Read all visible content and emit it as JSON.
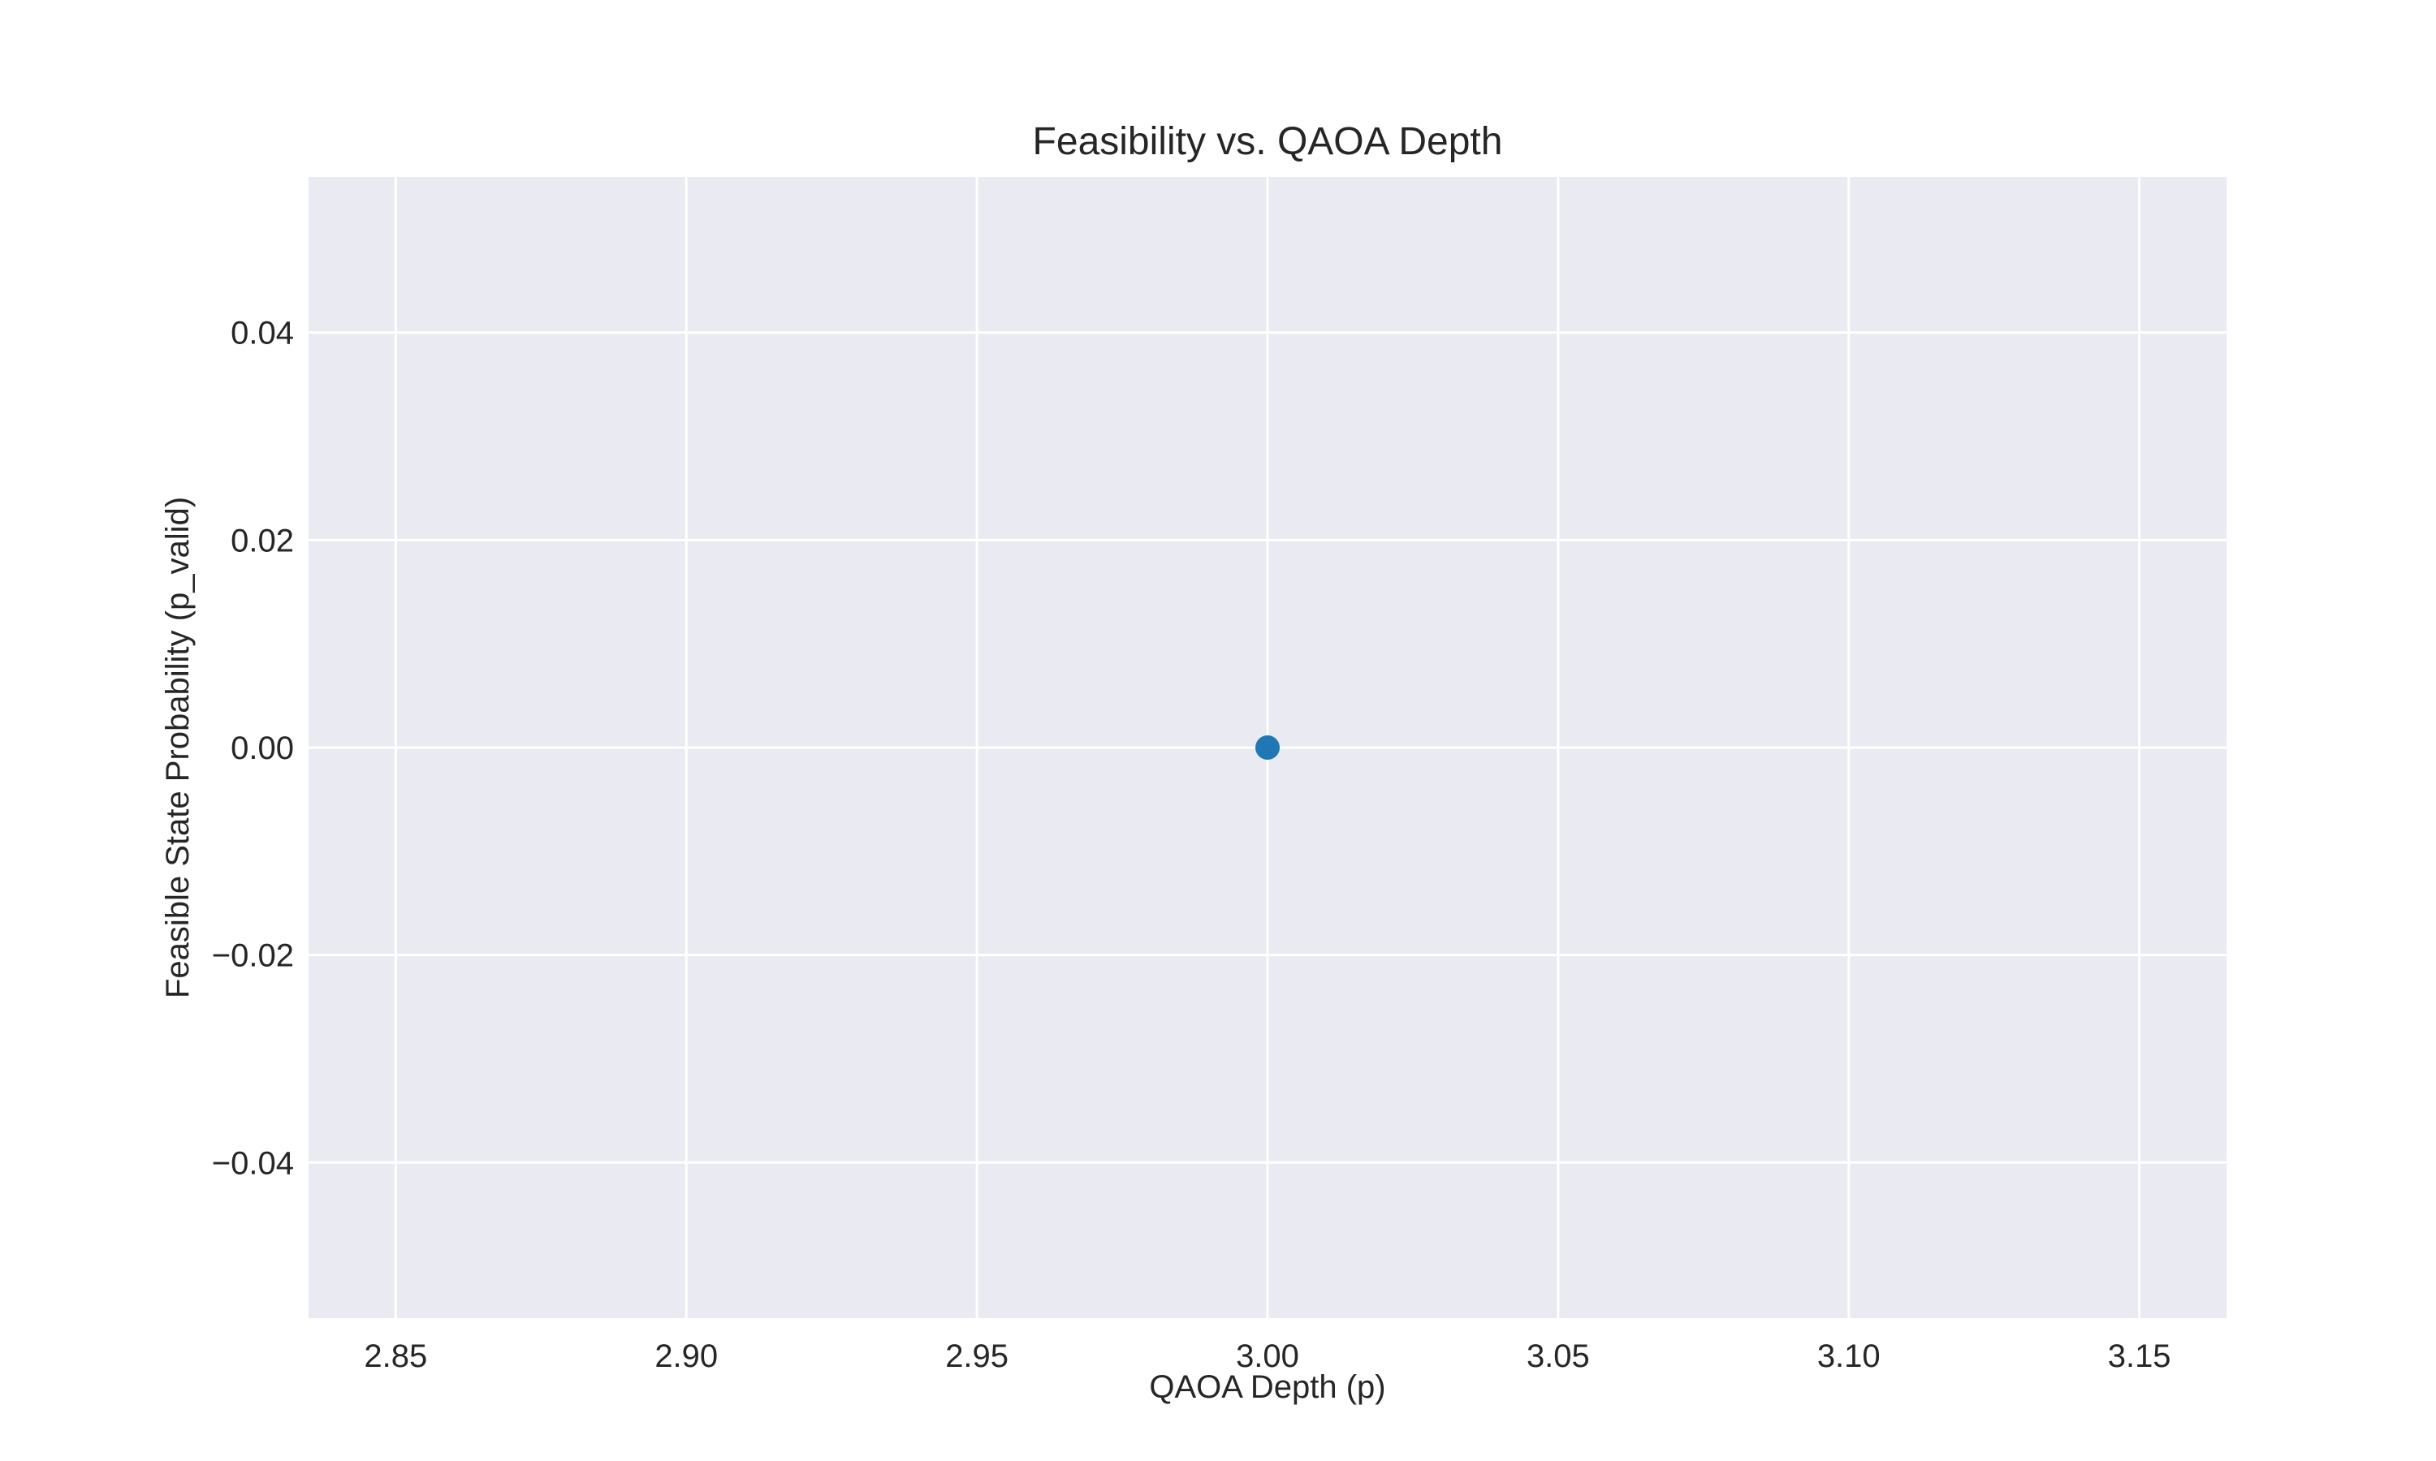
{
  "chart_data": {
    "type": "scatter",
    "title": "Feasibility vs. QAOA Depth",
    "xlabel": "QAOA Depth (p)",
    "ylabel": "Feasible State Probability (p_valid)",
    "xlim": [
      2.835,
      3.165
    ],
    "ylim": [
      -0.055,
      0.055
    ],
    "x_ticks": [
      2.85,
      2.9,
      2.95,
      3.0,
      3.05,
      3.1,
      3.15
    ],
    "x_tick_labels": [
      "2.85",
      "2.90",
      "2.95",
      "3.00",
      "3.05",
      "3.10",
      "3.15"
    ],
    "y_ticks": [
      0.04,
      0.02,
      0.0,
      -0.02,
      -0.04
    ],
    "y_tick_labels": [
      "0.04",
      "0.02",
      "0.00",
      "−0.02",
      "−0.04"
    ],
    "grid": true,
    "series": [
      {
        "color": "#1f77b4",
        "points": [
          {
            "x": 3.0,
            "y": 0.0
          }
        ]
      }
    ],
    "colors": {
      "plot_background": "#eaeaf2",
      "grid": "#ffffff",
      "text": "#262626",
      "marker": "#1f77b4"
    }
  }
}
